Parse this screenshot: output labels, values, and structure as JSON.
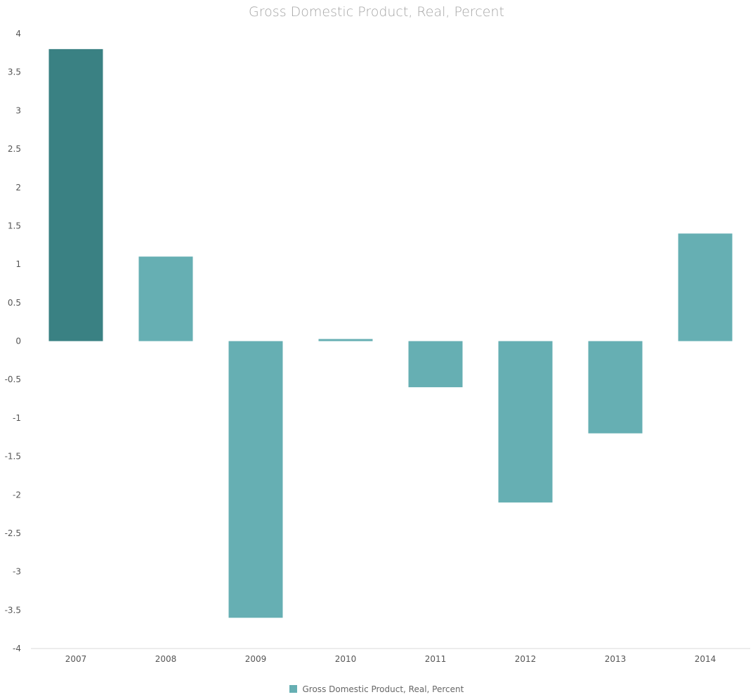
{
  "chart_data": {
    "type": "bar",
    "title": "Gross Domestic Product, Real, Percent",
    "xlabel": "",
    "ylabel": "",
    "categories": [
      "2007",
      "2008",
      "2009",
      "2010",
      "2011",
      "2012",
      "2013",
      "2014"
    ],
    "series": [
      {
        "name": "Gross Domestic Product, Real, Percent",
        "values": [
          3.8,
          1.1,
          -3.6,
          0.0,
          -0.6,
          -2.1,
          -1.2,
          1.4
        ]
      }
    ],
    "ylim": [
      -4,
      4
    ],
    "yticks": [
      4,
      3.5,
      3,
      2.5,
      2,
      1.5,
      1,
      0.5,
      0,
      -0.5,
      -1,
      -1.5,
      -2,
      -2.5,
      -3,
      -3.5,
      -4
    ],
    "ytick_labels": [
      "4",
      "3.5",
      "3",
      "2.5",
      "2",
      "1.5",
      "1",
      "0.5",
      "0",
      "-0.5",
      "-1",
      "-1.5",
      "-2",
      "-2.5",
      "-3",
      "-3.5",
      "-4"
    ],
    "grid": false,
    "legend_position": "bottom",
    "colors": {
      "bar": "#66afb3",
      "bar_highlight": "#3a8183"
    },
    "highlighted_category": "2007"
  }
}
